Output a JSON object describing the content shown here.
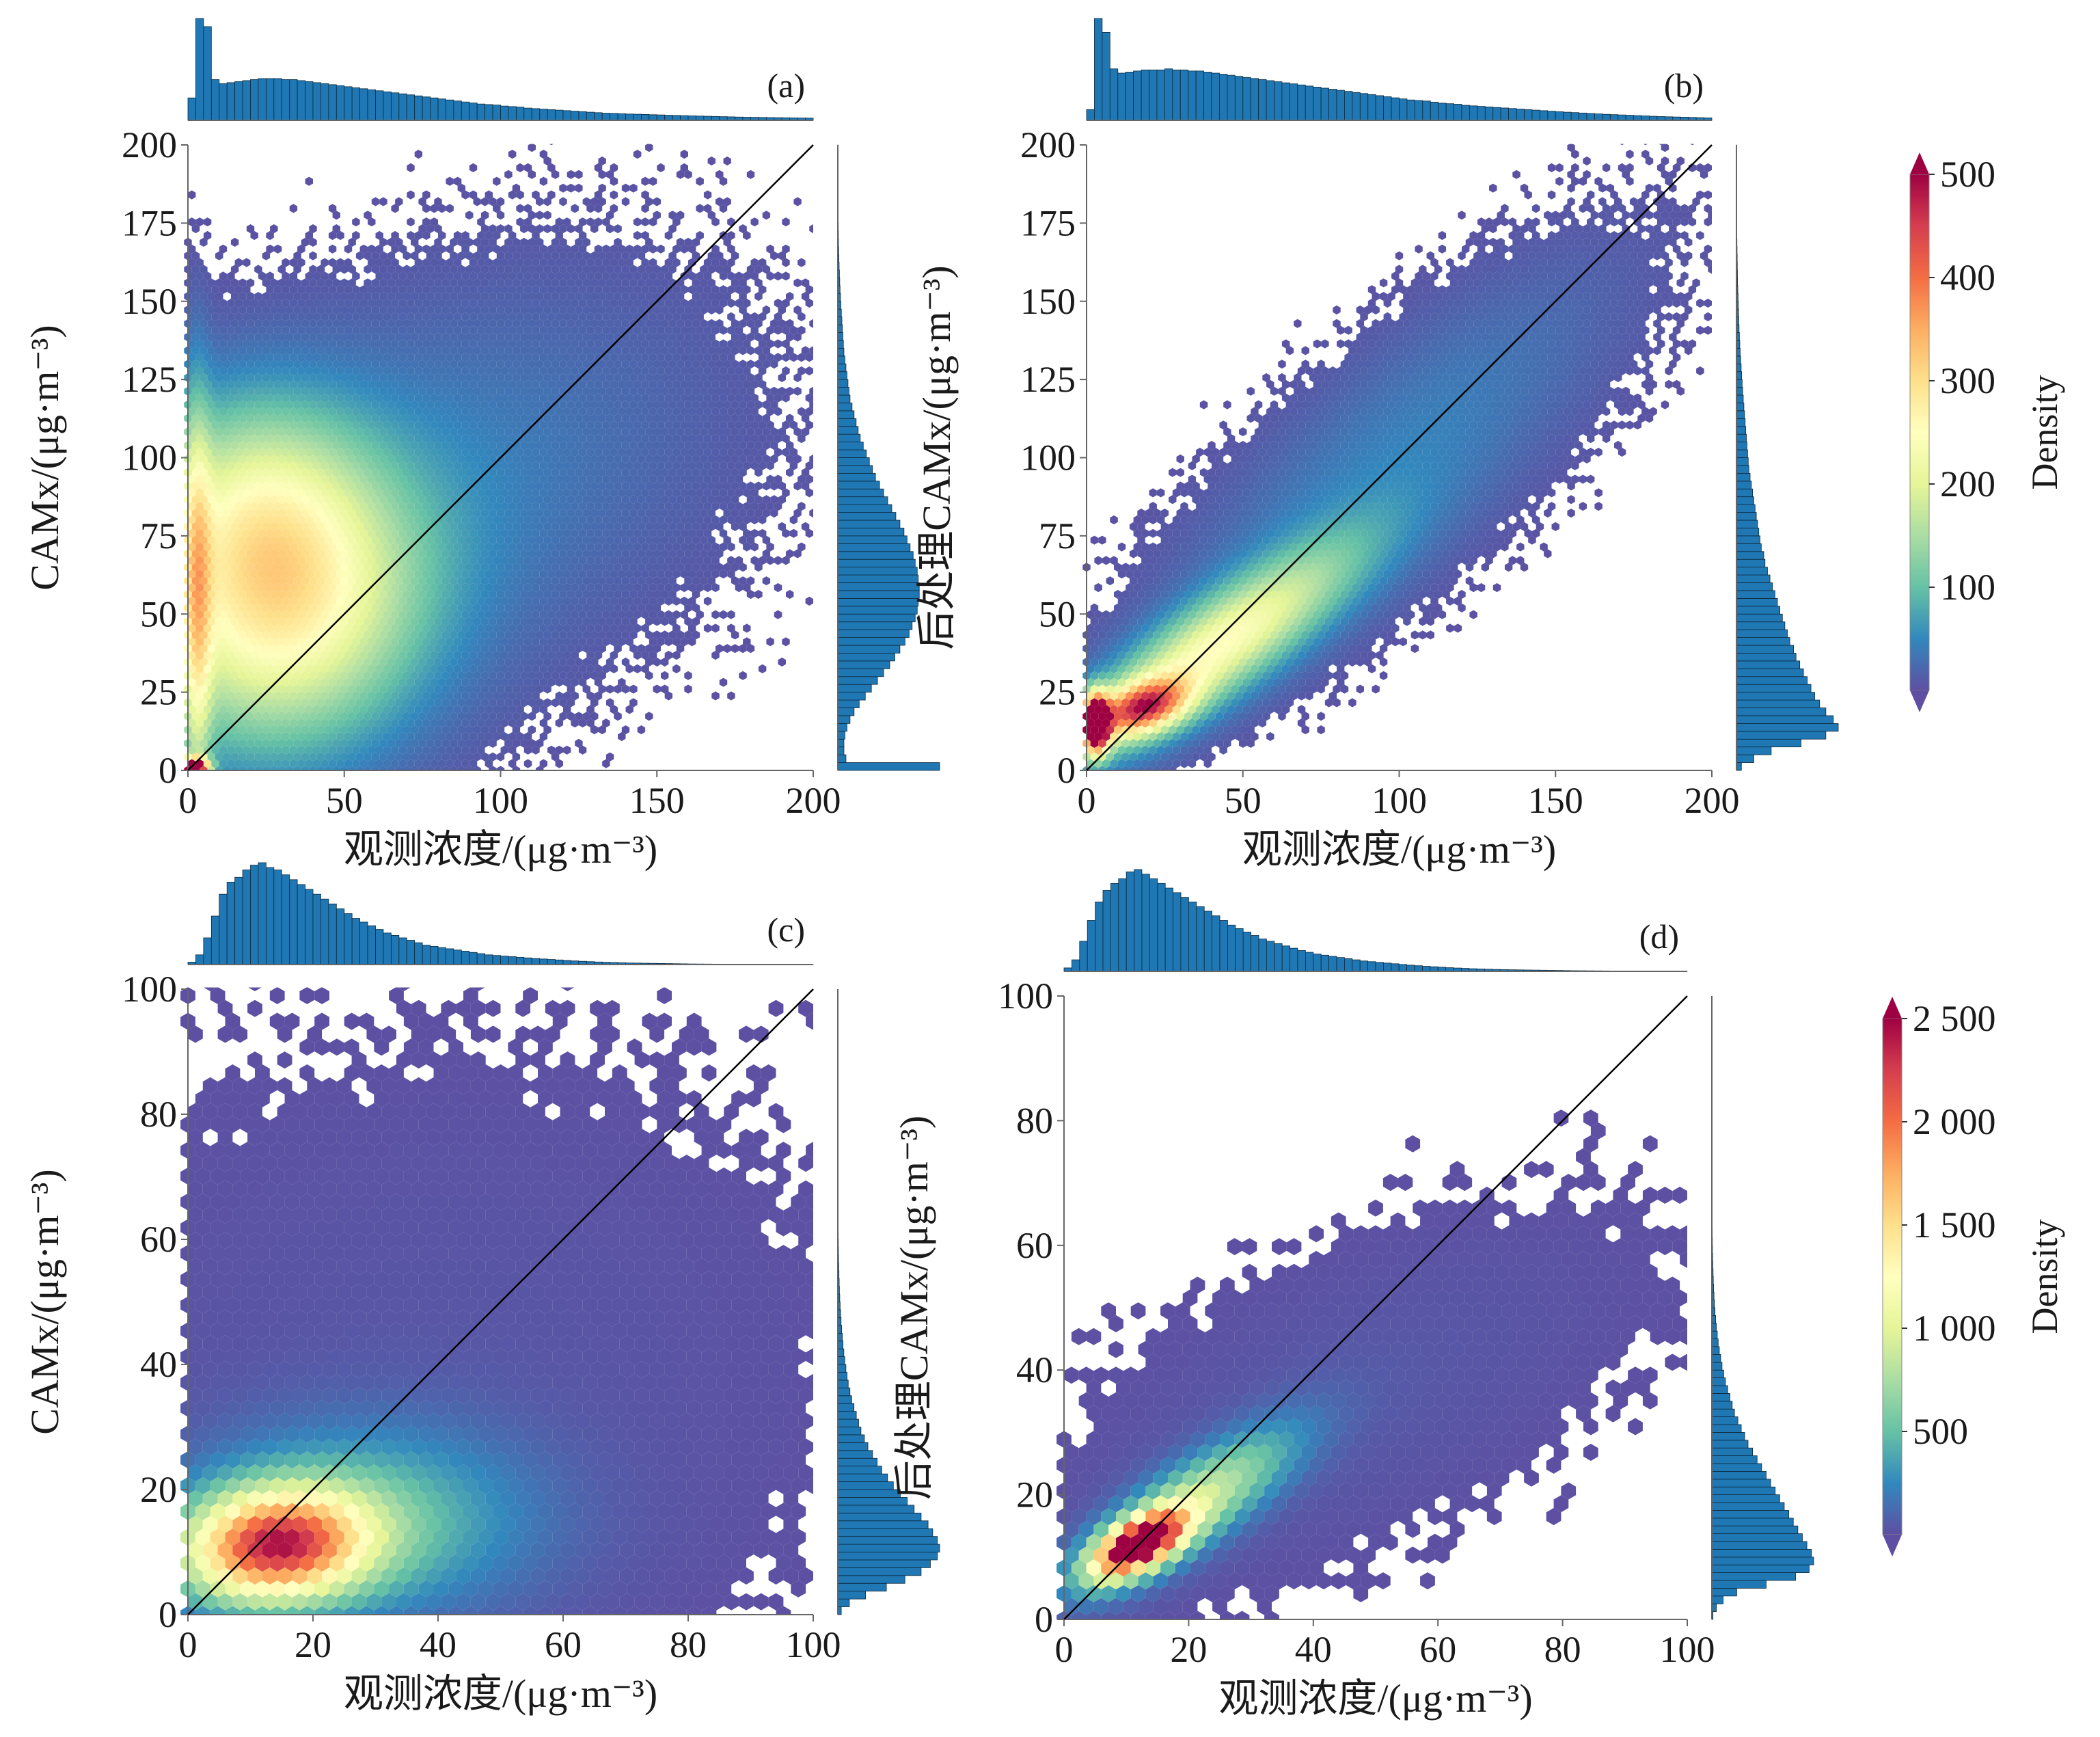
{
  "figure": {
    "layout": "2x2 joint hexbin plots with marginal histograms",
    "histogram_color": "#1f77b4",
    "histogram_edge": "#0d2a3d",
    "identity_line_color": "#000000",
    "colormap": "Spectral_r",
    "colormap_stops": [
      "#5e4fa2",
      "#3288bd",
      "#66c2a5",
      "#abdda4",
      "#e6f598",
      "#ffffbf",
      "#fee08b",
      "#fdae61",
      "#f46d43",
      "#d53e4f",
      "#9e0142"
    ]
  },
  "chart_data": [
    {
      "id": "a",
      "type": "heatmap",
      "subtype": "hexbin",
      "panel_label": "(a)",
      "xlabel": "观测浓度/(μg·m⁻³)",
      "ylabel": "CAMx/(μg·m⁻³)",
      "xlim": [
        0,
        200
      ],
      "ylim": [
        0,
        200
      ],
      "xticks": [
        0,
        50,
        100,
        150,
        200
      ],
      "yticks": [
        0,
        25,
        50,
        75,
        100,
        125,
        150,
        175,
        200
      ],
      "identity_line": true,
      "colorbar": "top",
      "density_components": [
        {
          "cx": 30,
          "cy": 50,
          "sx": 30,
          "sy": 30,
          "rho": 0.1,
          "peak": 230
        },
        {
          "cx": 20,
          "cy": 85,
          "sx": 25,
          "sy": 25,
          "rho": 0.0,
          "peak": 140
        },
        {
          "cx": 2,
          "cy": 1,
          "sx": 3,
          "sy": 2,
          "rho": 0.0,
          "peak": 600
        },
        {
          "cx": 3,
          "cy": 50,
          "sx": 3,
          "sy": 45,
          "rho": 0.0,
          "peak": 150
        },
        {
          "cx": 80,
          "cy": 90,
          "sx": 60,
          "sy": 45,
          "rho": 0.3,
          "peak": 40
        }
      ],
      "x_marginal": [
        22,
        100,
        92,
        40,
        36,
        37,
        38,
        39,
        40,
        41,
        41,
        41,
        40,
        40,
        39,
        38,
        37,
        36,
        35,
        34,
        33,
        32,
        31,
        30,
        29,
        28,
        27,
        26,
        25,
        24,
        23,
        22,
        21,
        20,
        19,
        18,
        17,
        16,
        15.5,
        15,
        14,
        13.5,
        13,
        12,
        11.5,
        11,
        10.5,
        10,
        9.5,
        9,
        8.5,
        8,
        7.5,
        7,
        6.8,
        6.5,
        6.2,
        6,
        5.8,
        5.5,
        5.3,
        5,
        4.8,
        4.6,
        4.4,
        4.2,
        4,
        3.8,
        3.6,
        3.4,
        3.2,
        3,
        2.9,
        2.8,
        2.7,
        2.6,
        2.5,
        2.4,
        2.3,
        2.2
      ],
      "y_marginal": [
        100,
        8,
        6,
        6,
        7,
        9,
        12,
        16,
        21,
        27,
        33,
        39,
        45,
        51,
        56,
        61,
        66,
        70,
        73,
        76,
        78,
        79,
        80,
        80,
        79,
        78,
        76,
        74,
        71,
        68,
        65,
        61,
        57,
        53,
        49,
        45,
        41,
        37,
        34,
        31,
        28,
        25,
        22,
        20,
        18,
        16,
        14,
        12,
        11,
        10,
        9,
        8,
        7,
        6,
        5.5,
        5,
        4.5,
        4,
        3.5,
        3,
        2.6,
        2.2,
        1.9,
        1.6,
        1.3,
        1.1,
        0.9,
        0.7,
        0.6,
        0.5,
        0.4,
        0.3,
        0.25,
        0.2,
        0.15,
        0.1,
        0.08,
        0.05,
        0.03,
        0.02
      ]
    },
    {
      "id": "b",
      "type": "heatmap",
      "subtype": "hexbin",
      "panel_label": "(b)",
      "xlabel": "观测浓度/(μg·m⁻³)",
      "ylabel": "后处理CAMx/(μg·m⁻³)",
      "xlim": [
        0,
        200
      ],
      "ylim": [
        0,
        200
      ],
      "xticks": [
        0,
        50,
        100,
        150,
        200
      ],
      "yticks": [
        0,
        25,
        50,
        75,
        100,
        125,
        150,
        175,
        200
      ],
      "identity_line": true,
      "colorbar": "top",
      "density_components": [
        {
          "cx": 40,
          "cy": 38,
          "sx": 30,
          "sy": 22,
          "rho": 0.85,
          "peak": 230
        },
        {
          "cx": 3,
          "cy": 15,
          "sx": 3,
          "sy": 6,
          "rho": 0.0,
          "peak": 650
        },
        {
          "cx": 18,
          "cy": 20,
          "sx": 10,
          "sy": 6,
          "rho": 0.4,
          "peak": 330
        },
        {
          "cx": 95,
          "cy": 95,
          "sx": 50,
          "sy": 45,
          "rho": 0.8,
          "peak": 45
        }
      ],
      "x_marginal": [
        10,
        95,
        82,
        48,
        44,
        45,
        46,
        47,
        47,
        47,
        48,
        47,
        47,
        46,
        46,
        45,
        44,
        43,
        42,
        41,
        40,
        39,
        38,
        37,
        36,
        35,
        34,
        33,
        32,
        31,
        30,
        29,
        28,
        27,
        26,
        25,
        24,
        23,
        22,
        21,
        20,
        19,
        18.5,
        18,
        17,
        16,
        15.5,
        15,
        14,
        13.5,
        13,
        12.5,
        12,
        11.5,
        11,
        10.5,
        10,
        9.5,
        9,
        8.5,
        8,
        7.6,
        7.2,
        6.8,
        6.4,
        6,
        5.6,
        5.3,
        5,
        4.7,
        4.4,
        4.1,
        3.8,
        3.5,
        3.3,
        3.1,
        2.9,
        2.7,
        2.5,
        2.3
      ],
      "y_marginal": [
        4,
        14,
        28,
        52,
        72,
        82,
        78,
        72,
        67,
        63,
        60,
        57,
        54,
        51,
        48,
        46,
        43,
        41,
        39,
        37,
        35,
        33,
        31,
        29,
        27,
        25,
        23,
        22,
        20,
        19,
        18,
        17,
        16,
        15,
        14,
        13,
        12,
        11,
        10,
        9.5,
        9,
        8.5,
        8,
        7.5,
        7,
        6.5,
        6,
        5.5,
        5,
        4.6,
        4.2,
        3.8,
        3.4,
        3,
        2.7,
        2.4,
        2.1,
        1.9,
        1.7,
        1.5,
        1.3,
        1.1,
        0.9,
        0.8,
        0.7,
        0.6,
        0.5,
        0.4,
        0.3,
        0.25,
        0.2,
        0.15,
        0.1,
        0.08,
        0.06,
        0.04,
        0.03,
        0.02,
        0.01,
        0.01
      ]
    },
    {
      "id": "c",
      "type": "heatmap",
      "subtype": "hexbin",
      "panel_label": "(c)",
      "xlabel": "观测浓度/(μg·m⁻³)",
      "ylabel": "CAMx/(μg·m⁻³)",
      "xlim": [
        0,
        100
      ],
      "ylim": [
        0,
        100
      ],
      "xticks": [
        0,
        20,
        40,
        60,
        80,
        100
      ],
      "yticks": [
        0,
        20,
        40,
        60,
        80,
        100
      ],
      "identity_line": true,
      "colorbar": "bottom",
      "density_components": [
        {
          "cx": 14,
          "cy": 11,
          "sx": 10,
          "sy": 6,
          "rho": 0.1,
          "peak": 2100
        },
        {
          "cx": 28,
          "cy": 15,
          "sx": 18,
          "sy": 10,
          "rho": 0.0,
          "peak": 500
        },
        {
          "cx": 40,
          "cy": 40,
          "sx": 40,
          "sy": 30,
          "rho": 0.0,
          "peak": 30
        }
      ],
      "x_marginal": [
        2,
        8,
        22,
        40,
        58,
        68,
        72,
        78,
        82,
        84,
        80,
        78,
        74,
        70,
        66,
        62,
        58,
        54,
        50,
        46,
        42,
        38,
        35,
        32,
        29,
        26,
        24,
        22,
        20,
        18,
        16,
        15,
        14,
        13,
        12,
        11,
        10,
        9,
        8,
        7.5,
        7,
        6.5,
        6,
        5.5,
        5,
        4.6,
        4.2,
        3.8,
        3.4,
        3,
        2.7,
        2.4,
        2.1,
        1.9,
        1.7,
        1.5,
        1.3,
        1.2,
        1.1,
        1,
        0.9,
        0.8,
        0.7,
        0.6,
        0.5,
        0.45,
        0.4,
        0.35,
        0.3,
        0.25,
        0.2,
        0.18,
        0.16,
        0.14,
        0.12,
        0.1,
        0.08,
        0.06,
        0.05,
        0.04
      ],
      "y_marginal": [
        3,
        10,
        24,
        42,
        58,
        72,
        80,
        86,
        88,
        86,
        82,
        78,
        72,
        66,
        60,
        54,
        48,
        43,
        38,
        34,
        30,
        26,
        23,
        20,
        18,
        16,
        14,
        12,
        10.5,
        9,
        8,
        7,
        6,
        5.2,
        4.5,
        3.9,
        3.3,
        2.8,
        2.4,
        2,
        1.7,
        1.4,
        1.2,
        1,
        0.85,
        0.7,
        0.6,
        0.5,
        0.4,
        0.33,
        0.27,
        0.22,
        0.18,
        0.15,
        0.12,
        0.1,
        0.08,
        0.06,
        0.05,
        0.04,
        0.03,
        0.02,
        0.02,
        0.01,
        0.01,
        0.01,
        0,
        0,
        0,
        0,
        0,
        0,
        0,
        0,
        0,
        0,
        0,
        0,
        0,
        0
      ]
    },
    {
      "id": "d",
      "type": "heatmap",
      "subtype": "hexbin",
      "panel_label": "(d)",
      "xlabel": "观测浓度/(μg·m⁻³)",
      "ylabel": "后处理CAMx/(μg·m⁻³)",
      "xlim": [
        0,
        100
      ],
      "ylim": [
        0,
        100
      ],
      "xticks": [
        0,
        20,
        40,
        60,
        80,
        100
      ],
      "yticks": [
        0,
        20,
        40,
        60,
        80,
        100
      ],
      "identity_line": true,
      "colorbar": "bottom",
      "density_components": [
        {
          "cx": 12,
          "cy": 12,
          "sx": 5,
          "sy": 3.5,
          "rho": 0.6,
          "peak": 2600
        },
        {
          "cx": 20,
          "cy": 18,
          "sx": 11,
          "sy": 8,
          "rho": 0.8,
          "peak": 900
        },
        {
          "cx": 45,
          "cy": 35,
          "sx": 28,
          "sy": 18,
          "rho": 0.6,
          "peak": 40
        }
      ],
      "x_marginal": [
        3,
        10,
        26,
        44,
        60,
        70,
        76,
        80,
        86,
        88,
        84,
        80,
        76,
        72,
        68,
        64,
        60,
        56,
        52,
        48,
        44,
        40,
        37,
        34,
        31,
        28,
        26,
        24,
        22,
        20,
        18,
        16.5,
        15,
        14,
        13,
        12,
        11,
        10,
        9,
        8.4,
        7.8,
        7.2,
        6.6,
        6,
        5.4,
        4.9,
        4.4,
        4,
        3.6,
        3.2,
        2.9,
        2.6,
        2.3,
        2.1,
        1.9,
        1.7,
        1.5,
        1.4,
        1.3,
        1.2,
        1.1,
        1,
        0.9,
        0.8,
        0.7,
        0.6,
        0.55,
        0.5,
        0.45,
        0.4,
        0.35,
        0.3,
        0.27,
        0.24,
        0.21,
        0.18,
        0.15,
        0.12,
        0.1,
        0.08
      ],
      "y_marginal": [
        1,
        4,
        10,
        22,
        48,
        74,
        86,
        90,
        88,
        84,
        80,
        76,
        72,
        68,
        64,
        60,
        56,
        52,
        48,
        44,
        40,
        36,
        32,
        29,
        26,
        23,
        20,
        18,
        16,
        14,
        12,
        10.5,
        9,
        7.8,
        6.6,
        5.6,
        4.8,
        4,
        3.4,
        2.8,
        2.3,
        1.9,
        1.6,
        1.3,
        1.1,
        0.9,
        0.75,
        0.6,
        0.5,
        0.4,
        0.33,
        0.27,
        0.22,
        0.18,
        0.14,
        0.11,
        0.09,
        0.07,
        0.05,
        0.04,
        0.03,
        0.02,
        0.02,
        0.01,
        0.01,
        0,
        0,
        0,
        0,
        0,
        0,
        0,
        0,
        0,
        0,
        0,
        0,
        0,
        0,
        0
      ]
    }
  ],
  "colorbars": [
    {
      "id": "top",
      "label": "Density",
      "range": [
        0,
        500
      ],
      "ticks": [
        100,
        200,
        300,
        400,
        500
      ],
      "tick_labels": [
        "100",
        "200",
        "300",
        "400",
        "500"
      ],
      "extend": "both"
    },
    {
      "id": "bottom",
      "label": "Density",
      "range": [
        0,
        2500
      ],
      "ticks": [
        500,
        1000,
        1500,
        2000,
        2500
      ],
      "tick_labels": [
        "500",
        "1 000",
        "1 500",
        "2 000",
        "2 500"
      ],
      "extend": "both"
    }
  ]
}
